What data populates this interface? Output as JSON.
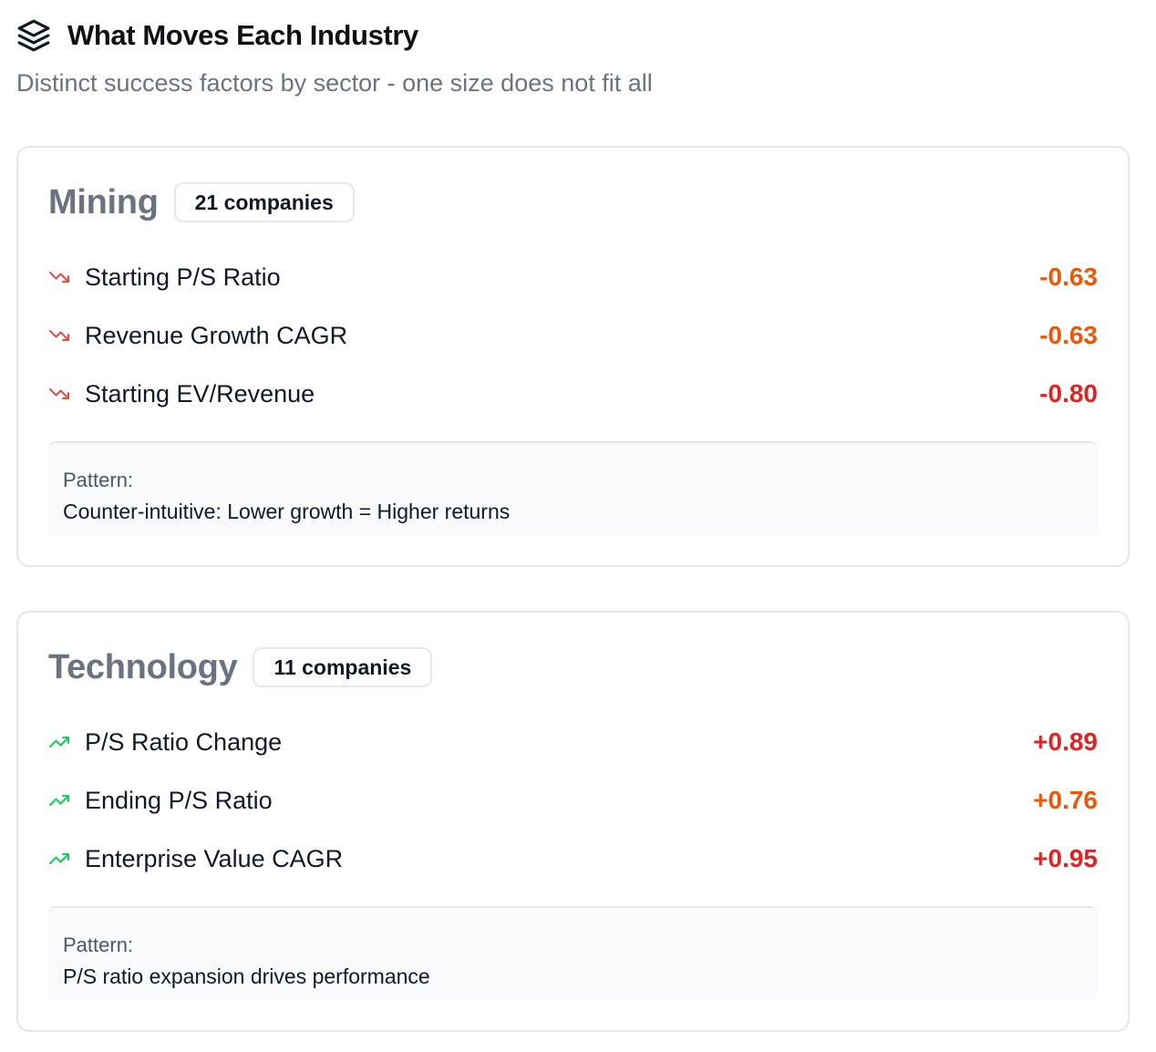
{
  "header": {
    "title": "What Moves Each Industry",
    "icon": "layers-icon",
    "subtitle": "Distinct success factors by sector - one size does not fit all"
  },
  "colors": {
    "negative_trend": "#ef4444",
    "positive_trend": "#22c55e",
    "value_orange": "#ea580c",
    "value_red": "#dc2626"
  },
  "sectors": [
    {
      "name": "Mining",
      "count_label": "21 companies",
      "factors": [
        {
          "label": "Starting P/S Ratio",
          "value": "-0.63",
          "trend": "down",
          "color": "orange"
        },
        {
          "label": "Revenue Growth CAGR",
          "value": "-0.63",
          "trend": "down",
          "color": "orange"
        },
        {
          "label": "Starting EV/Revenue",
          "value": "-0.80",
          "trend": "down",
          "color": "red"
        }
      ],
      "pattern_label": "Pattern:",
      "pattern_text": "Counter-intuitive: Lower growth = Higher returns"
    },
    {
      "name": "Technology",
      "count_label": "11 companies",
      "factors": [
        {
          "label": "P/S Ratio Change",
          "value": "+0.89",
          "trend": "up",
          "color": "red"
        },
        {
          "label": "Ending P/S Ratio",
          "value": "+0.76",
          "trend": "up",
          "color": "orange"
        },
        {
          "label": "Enterprise Value CAGR",
          "value": "+0.95",
          "trend": "up",
          "color": "red"
        }
      ],
      "pattern_label": "Pattern:",
      "pattern_text": "P/S ratio expansion drives performance"
    }
  ]
}
